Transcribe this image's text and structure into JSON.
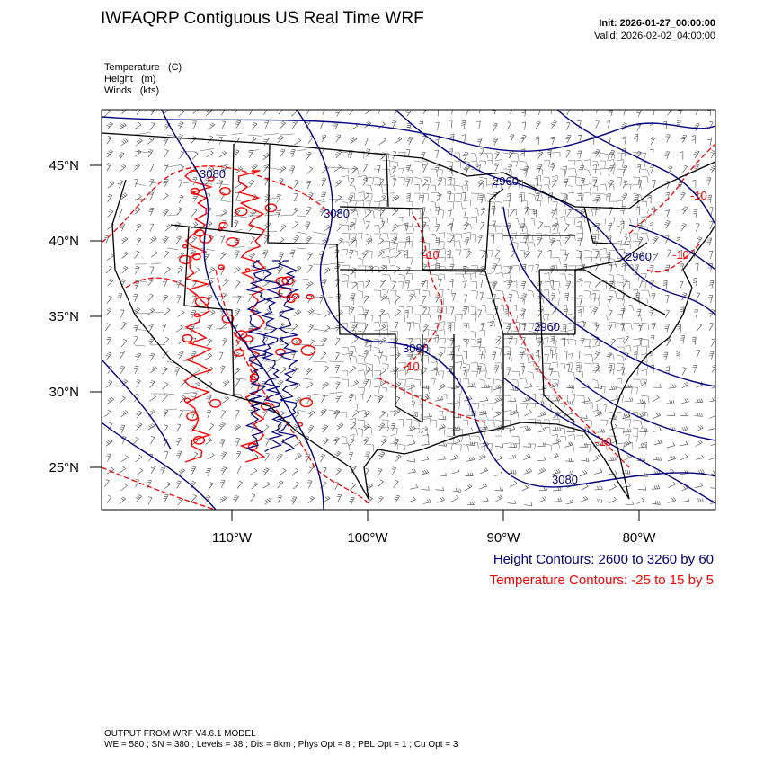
{
  "header": {
    "title": "IWFAQRP Contiguous US Real Time WRF",
    "init": "Init: 2026-01-27_00:00:00",
    "valid": "Valid: 2026-02-02_04:00:00"
  },
  "fields": [
    {
      "name": "Temperature",
      "unit": "(C)"
    },
    {
      "name": "Height",
      "unit": "(m)"
    },
    {
      "name": "Winds",
      "unit": "(kts)"
    }
  ],
  "map": {
    "lat_labels": [
      "45°N",
      "40°N",
      "35°N",
      "30°N",
      "25°N"
    ],
    "lon_labels": [
      "110°W",
      "100°W",
      "90°W",
      "80°W"
    ],
    "height_labels": [
      "3080",
      "3080",
      "2960",
      "2960",
      "3080",
      "2960",
      "3080"
    ],
    "temp_labels": [
      "-10",
      "-10",
      "-10",
      "-10",
      "-10"
    ],
    "colors": {
      "height": "#000080",
      "temp": "#ff0000",
      "border": "#000000"
    }
  },
  "legend": {
    "height_contours": "Height Contours: 2600 to 3260 by 60",
    "temp_contours": "Temperature Contours: -25 to 15 by 5"
  },
  "footer": {
    "line1": "OUTPUT FROM WRF V4.6.1 MODEL",
    "line2": "WE = 580 ; SN = 380 ; Levels = 38 ; Dis = 8km ; Phys Opt = 8 ; PBL Opt = 1 ; Cu Opt = 3"
  }
}
